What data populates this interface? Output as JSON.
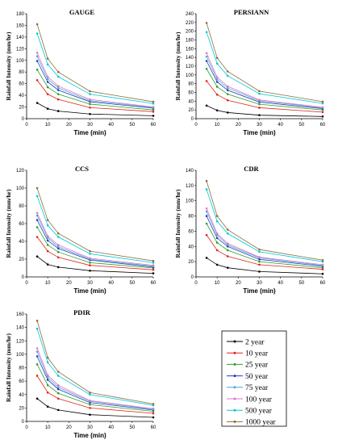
{
  "series_colors": {
    "2 year": "#000000",
    "10 year": "#e0241b",
    "25 year": "#2ca02c",
    "50 year": "#1f3fb4",
    "75 year": "#4fa6e0",
    "100 year": "#e377c2",
    "500 year": "#00c8d6",
    "1000 year": "#8c6d3b"
  },
  "legend": {
    "entries": [
      "2 year",
      "10 year",
      "25 year",
      "50 year",
      "75 year",
      "100 year",
      "500 year",
      "1000 year"
    ]
  },
  "chart_data": [
    {
      "type": "line",
      "title": "GAUGE",
      "xlabel": "Time (min)",
      "ylabel": "Rainfall Intensity (mm/hr)",
      "xlim": [
        0,
        60
      ],
      "ylim": [
        0,
        180
      ],
      "xticks": [
        0,
        10,
        20,
        30,
        40,
        50,
        60
      ],
      "yticks": [
        0,
        20,
        40,
        60,
        80,
        100,
        120,
        140,
        160,
        180
      ],
      "x": [
        5,
        10,
        15,
        30,
        60
      ],
      "series": [
        {
          "name": "2 year",
          "values": [
            27,
            17,
            13,
            8,
            5
          ]
        },
        {
          "name": "10 year",
          "values": [
            66,
            42,
            33,
            19,
            12
          ]
        },
        {
          "name": "25 year",
          "values": [
            84,
            54,
            42,
            25,
            15
          ]
        },
        {
          "name": "50 year",
          "values": [
            99,
            63,
            49,
            29,
            18
          ]
        },
        {
          "name": "75 year",
          "values": [
            107,
            68,
            53,
            31,
            19
          ]
        },
        {
          "name": "100 year",
          "values": [
            113,
            72,
            56,
            33,
            20
          ]
        },
        {
          "name": "500 year",
          "values": [
            146,
            93,
            72,
            42,
            26
          ]
        },
        {
          "name": "1000 year",
          "values": [
            162,
            103,
            80,
            47,
            29
          ]
        }
      ]
    },
    {
      "type": "line",
      "title": "PERSIANN",
      "xlabel": "Time (min)",
      "ylabel": "Rainfall Intensity (mm/hr)",
      "xlim": [
        0,
        60
      ],
      "ylim": [
        0,
        240
      ],
      "xticks": [
        0,
        10,
        20,
        30,
        40,
        50,
        60
      ],
      "yticks": [
        0,
        20,
        40,
        60,
        80,
        100,
        120,
        140,
        160,
        180,
        200,
        220,
        240
      ],
      "x": [
        5,
        10,
        15,
        30,
        60
      ],
      "series": [
        {
          "name": "2 year",
          "values": [
            30,
            19,
            14,
            8,
            5
          ]
        },
        {
          "name": "10 year",
          "values": [
            86,
            55,
            42,
            25,
            15
          ]
        },
        {
          "name": "25 year",
          "values": [
            114,
            73,
            56,
            33,
            20
          ]
        },
        {
          "name": "50 year",
          "values": [
            132,
            84,
            65,
            38,
            23
          ]
        },
        {
          "name": "75 year",
          "values": [
            142,
            90,
            70,
            41,
            25
          ]
        },
        {
          "name": "100 year",
          "values": [
            150,
            95,
            74,
            43,
            26
          ]
        },
        {
          "name": "500 year",
          "values": [
            198,
            126,
            98,
            57,
            35
          ]
        },
        {
          "name": "1000 year",
          "values": [
            219,
            139,
            108,
            63,
            39
          ]
        }
      ]
    },
    {
      "type": "line",
      "title": "CCS",
      "xlabel": "Time (min)",
      "ylabel": "Rainfall Intensity (mm/hr)",
      "xlim": [
        0,
        60
      ],
      "ylim": [
        0,
        120
      ],
      "xticks": [
        0,
        10,
        20,
        30,
        40,
        50,
        60
      ],
      "yticks": [
        0,
        20,
        40,
        60,
        80,
        100,
        120
      ],
      "x": [
        5,
        10,
        15,
        30,
        60
      ],
      "series": [
        {
          "name": "2 year",
          "values": [
            23,
            14,
            11,
            7,
            4
          ]
        },
        {
          "name": "10 year",
          "values": [
            45,
            29,
            22,
            13,
            8
          ]
        },
        {
          "name": "25 year",
          "values": [
            56,
            36,
            28,
            16,
            10
          ]
        },
        {
          "name": "50 year",
          "values": [
            64,
            41,
            32,
            19,
            11
          ]
        },
        {
          "name": "75 year",
          "values": [
            69,
            44,
            34,
            20,
            12
          ]
        },
        {
          "name": "100 year",
          "values": [
            72,
            46,
            36,
            21,
            13
          ]
        },
        {
          "name": "500 year",
          "values": [
            91,
            58,
            45,
            26,
            16
          ]
        },
        {
          "name": "1000 year",
          "values": [
            100,
            64,
            49,
            29,
            18
          ]
        }
      ]
    },
    {
      "type": "line",
      "title": "CDR",
      "xlabel": "Time (min)",
      "ylabel": "Rainfall Intensity (mm/hr)",
      "xlim": [
        0,
        60
      ],
      "ylim": [
        0,
        140
      ],
      "xticks": [
        0,
        10,
        20,
        30,
        40,
        50,
        60
      ],
      "yticks": [
        0,
        20,
        40,
        60,
        80,
        100,
        120,
        140
      ],
      "x": [
        5,
        10,
        15,
        30,
        60
      ],
      "series": [
        {
          "name": "2 year",
          "values": [
            25,
            16,
            12,
            7,
            4
          ]
        },
        {
          "name": "10 year",
          "values": [
            55,
            35,
            27,
            16,
            10
          ]
        },
        {
          "name": "25 year",
          "values": [
            70,
            45,
            35,
            20,
            12
          ]
        },
        {
          "name": "50 year",
          "values": [
            80,
            51,
            40,
            23,
            14
          ]
        },
        {
          "name": "75 year",
          "values": [
            86,
            55,
            42,
            25,
            15
          ]
        },
        {
          "name": "100 year",
          "values": [
            90,
            57,
            44,
            26,
            16
          ]
        },
        {
          "name": "500 year",
          "values": [
            115,
            73,
            57,
            33,
            20
          ]
        },
        {
          "name": "1000 year",
          "values": [
            126,
            80,
            62,
            36,
            22
          ]
        }
      ]
    },
    {
      "type": "line",
      "title": "PDIR",
      "xlabel": "Time (min)",
      "ylabel": "Rainfall Intensity (mm/hr)",
      "xlim": [
        0,
        60
      ],
      "ylim": [
        0,
        160
      ],
      "xticks": [
        0,
        10,
        20,
        30,
        40,
        50,
        60
      ],
      "yticks": [
        0,
        20,
        40,
        60,
        80,
        100,
        120,
        140,
        160
      ],
      "x": [
        5,
        10,
        15,
        30,
        60
      ],
      "series": [
        {
          "name": "2 year",
          "values": [
            34,
            22,
            17,
            10,
            6
          ]
        },
        {
          "name": "10 year",
          "values": [
            68,
            43,
            34,
            20,
            12
          ]
        },
        {
          "name": "25 year",
          "values": [
            85,
            54,
            42,
            25,
            15
          ]
        },
        {
          "name": "50 year",
          "values": [
            97,
            62,
            48,
            28,
            17
          ]
        },
        {
          "name": "75 year",
          "values": [
            104,
            66,
            51,
            30,
            18
          ]
        },
        {
          "name": "100 year",
          "values": [
            109,
            69,
            54,
            31,
            19
          ]
        },
        {
          "name": "500 year",
          "values": [
            138,
            88,
            68,
            40,
            24
          ]
        },
        {
          "name": "1000 year",
          "values": [
            150,
            95,
            74,
            43,
            26
          ]
        }
      ]
    }
  ]
}
